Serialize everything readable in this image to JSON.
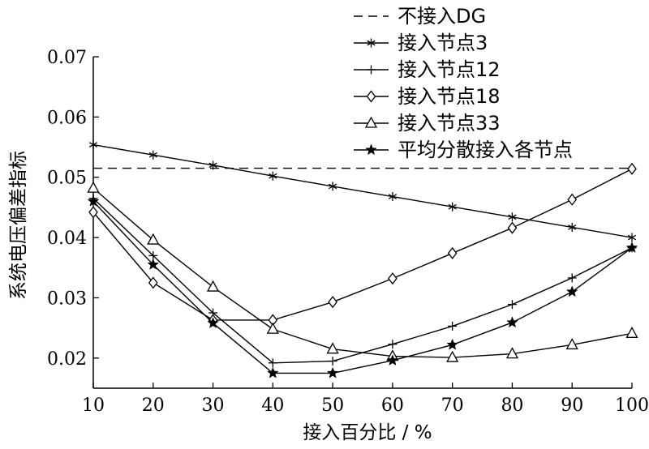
{
  "chart_data": {
    "type": "line",
    "title": "",
    "xlabel": "接入百分比 / %",
    "ylabel": "系统电压偏差指标",
    "x": [
      10,
      20,
      30,
      40,
      50,
      60,
      70,
      80,
      90,
      100
    ],
    "xlim": [
      10,
      100
    ],
    "ylim": [
      0.015,
      0.07
    ],
    "x_ticks": [
      "10",
      "20",
      "30",
      "40",
      "50",
      "60",
      "70",
      "80",
      "90",
      "100"
    ],
    "y_ticks": [
      "0.02",
      "0.03",
      "0.04",
      "0.05",
      "0.06",
      "0.07"
    ],
    "grid": false,
    "legend_position": "top-right",
    "series": [
      {
        "name": "不接入DG",
        "marker": "none",
        "dashed": true,
        "values": [
          0.0515,
          0.0515,
          0.0515,
          0.0515,
          0.0515,
          0.0515,
          0.0515,
          0.0515,
          0.0515,
          0.0515
        ]
      },
      {
        "name": "接入节点3",
        "marker": "asterisk",
        "values": [
          0.0554,
          0.0537,
          0.052,
          0.0502,
          0.0485,
          0.0468,
          0.0451,
          0.0434,
          0.0417,
          0.04
        ]
      },
      {
        "name": "接入节点12",
        "marker": "plus",
        "values": [
          0.0465,
          0.037,
          0.0275,
          0.0192,
          0.0195,
          0.0223,
          0.0253,
          0.0289,
          0.0333,
          0.0383
        ]
      },
      {
        "name": "接入节点18",
        "marker": "diamond",
        "values": [
          0.0442,
          0.0325,
          0.0263,
          0.0263,
          0.0293,
          0.0332,
          0.0374,
          0.0416,
          0.0463,
          0.0514
        ]
      },
      {
        "name": "接入节点33",
        "marker": "triangle",
        "values": [
          0.0482,
          0.0396,
          0.0318,
          0.0248,
          0.0215,
          0.0203,
          0.0201,
          0.0207,
          0.0222,
          0.0241
        ]
      },
      {
        "name": "平均分散接入各节点",
        "marker": "star",
        "values": [
          0.046,
          0.0355,
          0.0258,
          0.0175,
          0.0175,
          0.0196,
          0.0222,
          0.0259,
          0.031,
          0.0383
        ]
      }
    ]
  }
}
